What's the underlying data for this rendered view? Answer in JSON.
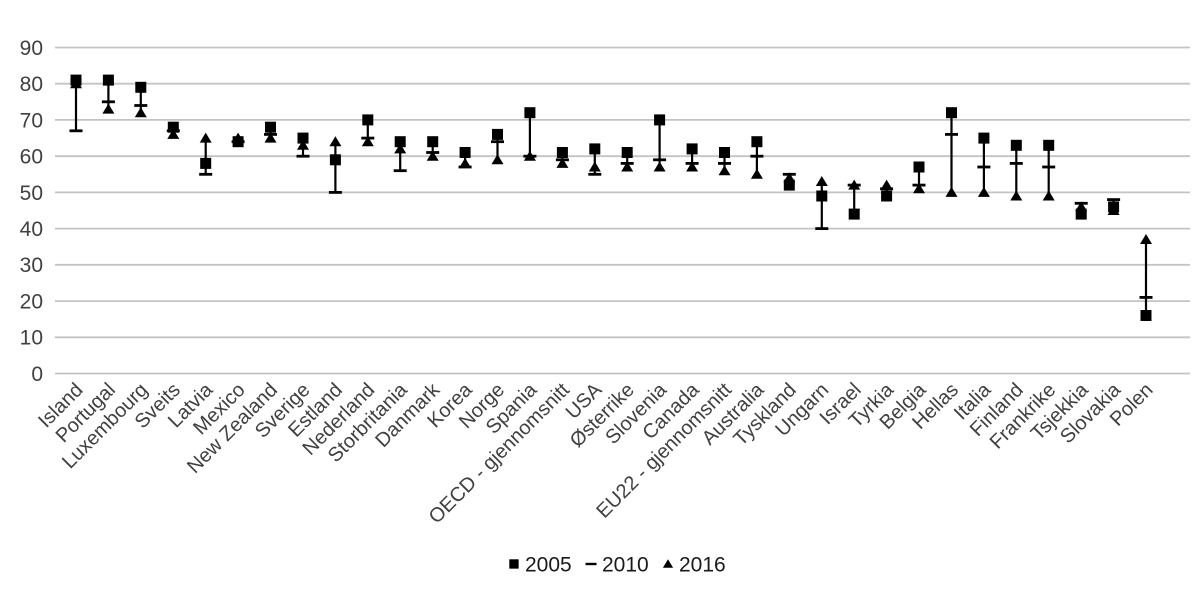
{
  "chart_data": {
    "type": "scatter",
    "subtype": "high-low-marker-chart",
    "title": "",
    "xlabel": "",
    "ylabel": "",
    "ylim": [
      0,
      90
    ],
    "yticks": [
      0,
      10,
      20,
      30,
      40,
      50,
      60,
      70,
      80,
      90
    ],
    "grid": "horizontal",
    "legend_position": "bottom-center",
    "categories": [
      "Island",
      "Portugal",
      "Luxembourg",
      "Sveits",
      "Latvia",
      "Mexico",
      "New Zealand",
      "Sverige",
      "Estland",
      "Nederland",
      "Storbritania",
      "Danmark",
      "Korea",
      "Norge",
      "Spania",
      "OECD - gjennomsnitt",
      "USA",
      "Østerrike",
      "Slovenia",
      "Canada",
      "EU22 - gjennomsnitt",
      "Australia",
      "Tyskland",
      "Ungarn",
      "Israel",
      "Tyrkia",
      "Belgia",
      "Hellas",
      "Italia",
      "Finland",
      "Frankrike",
      "Tsjekkia",
      "Slovakia",
      "Polen"
    ],
    "series": [
      {
        "name": "2005",
        "marker": "square",
        "values": [
          81,
          81,
          79,
          68,
          58,
          64,
          68,
          65,
          59,
          70,
          64,
          64,
          61,
          66,
          72,
          61,
          62,
          61,
          70,
          62,
          61,
          64,
          52,
          49,
          44,
          49,
          57,
          72,
          65,
          63,
          63,
          44,
          46,
          16
        ]
      },
      {
        "name": "2010",
        "marker": "dash",
        "values": [
          67,
          75,
          74,
          67,
          55,
          64,
          66,
          60,
          50,
          65,
          56,
          61,
          57,
          64,
          60,
          59,
          55,
          58,
          59,
          58,
          58,
          60,
          55,
          40,
          52,
          51,
          52,
          66,
          57,
          58,
          57,
          47,
          48,
          21
        ]
      },
      {
        "name": "2016",
        "marker": "triangle",
        "values": [
          80,
          73,
          72,
          66,
          65,
          65,
          65,
          63,
          64,
          64,
          62,
          60,
          58,
          59,
          60,
          58,
          57,
          57,
          57,
          57,
          56,
          55,
          54,
          53,
          52,
          52,
          51,
          50,
          50,
          49,
          49,
          46,
          45,
          37
        ]
      }
    ],
    "legend": [
      {
        "label": "2005",
        "marker": "square"
      },
      {
        "label": "2010",
        "marker": "dash"
      },
      {
        "label": "2016",
        "marker": "triangle"
      }
    ],
    "colors": {
      "marker": "#000000",
      "gridline": "#c3c3c3",
      "text": "#404040",
      "background": "#ffffff"
    }
  }
}
